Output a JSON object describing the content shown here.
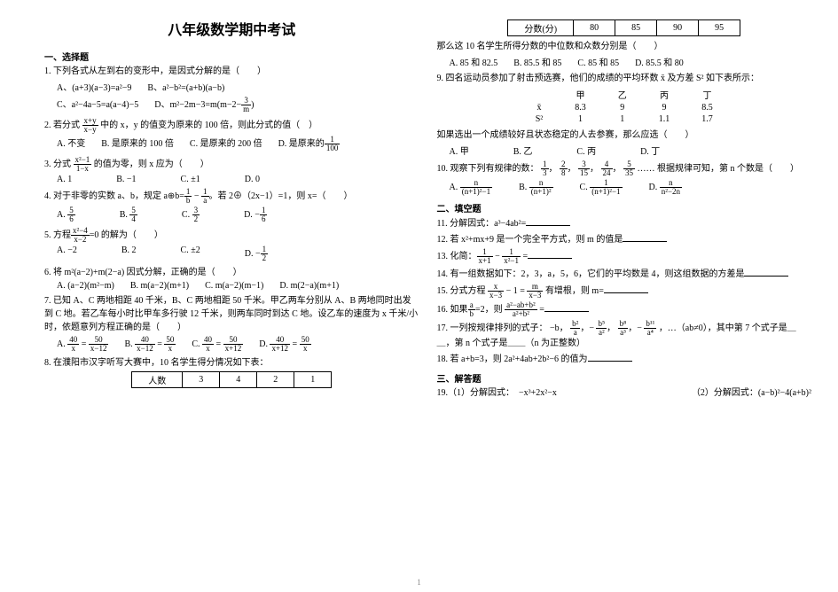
{
  "title": "八年级数学期中考试",
  "left": {
    "sec1": "一、选择题",
    "q1": "1. 下列各式从左到右的变形中，是因式分解的是（　　）",
    "q1a": "A、(a+3)(a−3)=a²−9",
    "q1b": "B、a²−b²=(a+b)(a−b)",
    "q1c": "C、a²−4a−5=a(a−4)−5",
    "q1d_pre": "D、m²−2m−3=m",
    "q1d_paren_l": "(m−2−",
    "q1d_fn": "3",
    "q1d_fd": "m",
    "q1d_paren_r": ")",
    "q2_pre": "2. 若分式",
    "q2_frac_n": "x+y",
    "q2_frac_d": "x−y",
    "q2_mid": "中的 x，y 的值变为原来的 100 倍，则此分式的值（　）",
    "q2a": "A. 不变",
    "q2b": "B. 是原来的 100 倍",
    "q2c": "C. 是原来的 200 倍",
    "q2d_pre": "D. 是原来的",
    "q2d_fn": "1",
    "q2d_fd": "100",
    "q3_pre": "3. 分式",
    "q3_fn": "x²−1",
    "q3_fd": "1−x",
    "q3_post": "的值为零，则 x 应为（　　）",
    "q3a": "A. 1",
    "q3b": "B. −1",
    "q3c": "C. ±1",
    "q3d": "D. 0",
    "q4_pre": "4. 对于非零的实数 a、b，规定 a⊕b=",
    "q4_f1n": "1",
    "q4_f1d": "b",
    "q4_minus": " − ",
    "q4_f2n": "1",
    "q4_f2d": "a",
    "q4_post": "。若 2⊕（2x−1）=1，则 x=（　　）",
    "q4a_pre": "A. ",
    "q4a_fn": "5",
    "q4a_fd": "6",
    "q4b_pre": "B. ",
    "q4b_fn": "5",
    "q4b_fd": "4",
    "q4c_pre": "C. ",
    "q4c_fn": "3",
    "q4c_fd": "2",
    "q4d_pre": "D. −",
    "q4d_fn": "1",
    "q4d_fd": "6",
    "q5_pre": "5. 方程",
    "q5_fn": "x²−4",
    "q5_fd": "x−2",
    "q5_eq": "=0 的解为（　　）",
    "q5a": "A. −2",
    "q5b": "B. 2",
    "q5c": "C. ±2",
    "q5d_pre": "D. −",
    "q5d_fn": "1",
    "q5d_fd": "2",
    "q6": "6. 将 m²(a−2)+m(2−a) 因式分解，正确的是（　　）",
    "q6a": "A. (a−2)(m²−m)",
    "q6b": "B. m(a−2)(m+1)",
    "q6c": "C. m(a−2)(m−1)",
    "q6d": "D. m(2−a)(m+1)",
    "q7": "7. 已知 A、C 两地相距 40 千米，B、C 两地相距 50 千米。甲乙两车分别从 A、B 两地同时出发到 C 地。若乙车每小时比甲车多行驶 12 千米，则两车同时到达 C 地。设乙车的速度为 x 千米/小时，依题意列方程正确的是（　　）",
    "q7a_pre": "A. ",
    "q7a_l_n": "40",
    "q7a_l_d": "x",
    "q7a_eq": " = ",
    "q7a_r_n": "50",
    "q7a_r_d": "x−12",
    "q7b_pre": "B. ",
    "q7b_l_n": "40",
    "q7b_l_d": "x−12",
    "q7b_eq": " = ",
    "q7b_r_n": "50",
    "q7b_r_d": "x",
    "q7c_pre": "C. ",
    "q7c_l_n": "40",
    "q7c_l_d": "x",
    "q7c_eq": " = ",
    "q7c_r_n": "50",
    "q7c_r_d": "x+12",
    "q7d_pre": "D. ",
    "q7d_l_n": "40",
    "q7d_l_d": "x+12",
    "q7d_eq": " = ",
    "q7d_r_n": "50",
    "q7d_r_d": "x",
    "q8": "8. 在濮阳市汉字听写大赛中，10 名学生得分情况如下表：",
    "t8_h1": "人数",
    "t8_c1": "3",
    "t8_c2": "4",
    "t8_c3": "2",
    "t8_c4": "1"
  },
  "right": {
    "t8b_h1": "分数(分)",
    "t8b_c1": "80",
    "t8b_c2": "85",
    "t8b_c3": "90",
    "t8b_c4": "95",
    "q8b": "那么这 10 名学生所得分数的中位数和众数分别是（　　）",
    "q8a": "A. 85 和 82.5",
    "q8bopt": "B. 85.5 和 85",
    "q8c": "C. 85 和 85",
    "q8d": "D. 85.5 和 80",
    "q9": "9. 四名运动员参加了射击预选赛，他们的成绩的平均环数 x̄ 及方差 S² 如下表所示：",
    "t9_h0": "",
    "t9_h1": "甲",
    "t9_h2": "乙",
    "t9_h3": "丙",
    "t9_h4": "丁",
    "t9_r1_0": "x̄",
    "t9_r1_1": "8.3",
    "t9_r1_2": "9",
    "t9_r1_3": "9",
    "t9_r1_4": "8.5",
    "t9_r2_0": "S²",
    "t9_r2_1": "1",
    "t9_r2_2": "1",
    "t9_r2_3": "1.1",
    "t9_r2_4": "1.7",
    "q9b": "如果选出一个成绩较好且状态稳定的人去参赛，那么应选（　　）",
    "q9a": "A. 甲",
    "q9bopt": "B. 乙",
    "q9c": "C. 丙",
    "q9d": "D. 丁",
    "q10_pre": "10. 观察下列有规律的数：",
    "q10_f1n": "1",
    "q10_f1d": "3",
    "q10_c1": "，",
    "q10_f2n": "2",
    "q10_f2d": "8",
    "q10_c2": "，",
    "q10_f3n": "3",
    "q10_f3d": "15",
    "q10_c3": "，",
    "q10_f4n": "4",
    "q10_f4d": "24",
    "q10_c4": "，",
    "q10_f5n": "5",
    "q10_f5d": "35",
    "q10_post": " …… 根据规律可知，第 n 个数是（　　）",
    "q10a_pre": "A. ",
    "q10a_fn": "n",
    "q10a_fd": "(n+1)²−1",
    "q10b_pre": "B. ",
    "q10b_fn": "n",
    "q10b_fd": "(n+1)²",
    "q10c_pre": "C. ",
    "q10c_fn": "1",
    "q10c_fd": "(n+1)²−1",
    "q10d_pre": "D. ",
    "q10d_fn": "n",
    "q10d_fd": "n²−2n",
    "sec2": "二、填空题",
    "q11": "11. 分解因式：a³−4ab²=",
    "q12": "12. 若 x²+mx+9 是一个完全平方式，则 m 的值是",
    "q13_pre": "13. 化简：",
    "q13_f1n": "1",
    "q13_f1d": "x+1",
    "q13_minus": " − ",
    "q13_f2n": "1",
    "q13_f2d": "x²−1",
    "q13_eq": " =",
    "q14": "14. 有一组数据如下：2，3，a，5，6，它们的平均数是 4，则这组数据的方差是",
    "q15_pre": "15. 分式方程 ",
    "q15_f1n": "x",
    "q15_f1d": "x−3",
    "q15_mid": " − 1 = ",
    "q15_f2n": "m",
    "q15_f2d": "x−3",
    "q15_post": " 有增根，则 m=",
    "q16_pre": "16. 如果",
    "q16_f0n": "a",
    "q16_f0d": "b",
    "q16_eq0": "=2，则 ",
    "q16_fn": "a²−ab+b²",
    "q16_fd": "a²+b²",
    "q16_eq": " =",
    "q17_pre": "17. 一列按规律排列的式子：",
    "q17_t1": "−b，",
    "q17_f2n": "b²",
    "q17_f2d": "a",
    "q17_c2": "，−",
    "q17_f3n": "b⁵",
    "q17_f3d": "a²",
    "q17_c3": "，",
    "q17_f4n": "b⁸",
    "q17_f4d": "a³",
    "q17_c4": "，−",
    "q17_f5n": "b¹¹",
    "q17_f5d": "a⁴",
    "q17_post": "，…（ab≠0），其中第 7 个式子是＿＿，第 n 个式子是＿＿（n 为正整数）",
    "q18": "18. 若 a+b=3，则 2a²+4ab+2b²−6 的值为",
    "sec3": "三、解答题",
    "q19": "19.（1）分解因式：　−x³+2x²−x",
    "q19b": "（2）分解因式：(a−b)²−4(a+b)²"
  },
  "pgnum": "1"
}
